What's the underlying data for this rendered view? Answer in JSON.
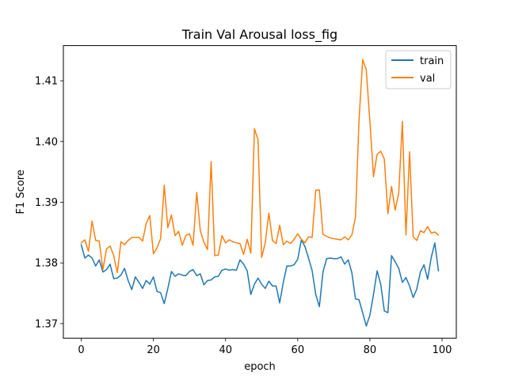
{
  "chart_data": {
    "type": "line",
    "title": "Train Val Arousal loss_fig",
    "xlabel": "epoch",
    "ylabel": "F1 Score",
    "xlim": [
      -4.95,
      103.95
    ],
    "ylim": [
      1.3676,
      1.4158
    ],
    "xticks": [
      0,
      20,
      40,
      60,
      80,
      100
    ],
    "yticks": [
      1.37,
      1.38,
      1.39,
      1.4,
      1.41
    ],
    "ytick_labels": [
      "1.37",
      "1.38",
      "1.39",
      "1.40",
      "1.41"
    ],
    "grid": false,
    "legend_position": "top-right",
    "series": [
      {
        "name": "train",
        "color": "#1f77b4",
        "x": [
          0,
          1,
          2,
          3,
          4,
          5,
          6,
          7,
          8,
          9,
          10,
          11,
          12,
          13,
          14,
          15,
          16,
          17,
          18,
          19,
          20,
          21,
          22,
          23,
          24,
          25,
          26,
          27,
          28,
          29,
          30,
          31,
          32,
          33,
          34,
          35,
          36,
          37,
          38,
          39,
          40,
          41,
          42,
          43,
          44,
          45,
          46,
          47,
          48,
          49,
          50,
          51,
          52,
          53,
          54,
          55,
          56,
          57,
          58,
          59,
          60,
          61,
          62,
          63,
          64,
          65,
          66,
          67,
          68,
          69,
          70,
          71,
          72,
          73,
          74,
          75,
          76,
          77,
          78,
          79,
          80,
          81,
          82,
          83,
          84,
          85,
          86,
          87,
          88,
          89,
          90,
          91,
          92,
          93,
          94,
          95,
          96,
          97,
          98,
          99
        ],
        "values": [
          1.383,
          1.3808,
          1.3813,
          1.3808,
          1.3795,
          1.3805,
          1.3785,
          1.3789,
          1.3798,
          1.3774,
          1.3775,
          1.378,
          1.3791,
          1.3771,
          1.3756,
          1.3777,
          1.3768,
          1.3758,
          1.3771,
          1.3765,
          1.3777,
          1.3753,
          1.3751,
          1.3733,
          1.3758,
          1.3786,
          1.3778,
          1.3782,
          1.378,
          1.3779,
          1.3786,
          1.3789,
          1.3779,
          1.3782,
          1.3764,
          1.3771,
          1.3772,
          1.3777,
          1.3778,
          1.3788,
          1.379,
          1.3788,
          1.3789,
          1.3788,
          1.3805,
          1.3798,
          1.3787,
          1.3748,
          1.3765,
          1.3775,
          1.3765,
          1.3758,
          1.377,
          1.3762,
          1.3762,
          1.3734,
          1.3768,
          1.3795,
          1.3795,
          1.3797,
          1.3806,
          1.3838,
          1.3827,
          1.3808,
          1.3787,
          1.3748,
          1.3728,
          1.3785,
          1.3807,
          1.3808,
          1.3807,
          1.3807,
          1.381,
          1.3798,
          1.3805,
          1.3784,
          1.3741,
          1.3739,
          1.3718,
          1.3696,
          1.3714,
          1.3748,
          1.3787,
          1.3765,
          1.3721,
          1.3718,
          1.3812,
          1.3802,
          1.3791,
          1.3768,
          1.3776,
          1.3762,
          1.3743,
          1.3757,
          1.3785,
          1.3797,
          1.3773,
          1.3809,
          1.3833,
          1.3787
        ]
      },
      {
        "name": "val",
        "color": "#ff7f0e",
        "x": [
          0,
          1,
          2,
          3,
          4,
          5,
          6,
          7,
          8,
          9,
          10,
          11,
          12,
          13,
          14,
          15,
          16,
          17,
          18,
          19,
          20,
          21,
          22,
          23,
          24,
          25,
          26,
          27,
          28,
          29,
          30,
          31,
          32,
          33,
          34,
          35,
          36,
          37,
          38,
          39,
          40,
          41,
          42,
          43,
          44,
          45,
          46,
          47,
          48,
          49,
          50,
          51,
          52,
          53,
          54,
          55,
          56,
          57,
          58,
          59,
          60,
          61,
          62,
          63,
          64,
          65,
          66,
          67,
          68,
          69,
          70,
          71,
          72,
          73,
          74,
          75,
          76,
          77,
          78,
          79,
          80,
          81,
          82,
          83,
          84,
          85,
          86,
          87,
          88,
          89,
          90,
          91,
          92,
          93,
          94,
          95,
          96,
          97,
          98,
          99
        ],
        "values": [
          1.3833,
          1.3838,
          1.3819,
          1.3869,
          1.3837,
          1.3836,
          1.3789,
          1.3823,
          1.3828,
          1.3812,
          1.3784,
          1.3835,
          1.383,
          1.3837,
          1.3842,
          1.3842,
          1.3842,
          1.3836,
          1.3865,
          1.3878,
          1.3815,
          1.3825,
          1.384,
          1.3928,
          1.3858,
          1.3879,
          1.3845,
          1.3852,
          1.3829,
          1.3845,
          1.3848,
          1.3829,
          1.3916,
          1.3853,
          1.3834,
          1.3822,
          1.3967,
          1.3812,
          1.3813,
          1.3845,
          1.3833,
          1.3838,
          1.3835,
          1.3833,
          1.3832,
          1.3814,
          1.3839,
          1.3816,
          1.4021,
          1.4003,
          1.3809,
          1.3833,
          1.3882,
          1.3837,
          1.3832,
          1.3862,
          1.383,
          1.3836,
          1.3832,
          1.3839,
          1.3848,
          1.3839,
          1.3833,
          1.3843,
          1.3842,
          1.392,
          1.392,
          1.3847,
          1.3844,
          1.3841,
          1.384,
          1.3839,
          1.3838,
          1.3843,
          1.3838,
          1.3846,
          1.3875,
          1.4036,
          1.4135,
          1.4118,
          1.4033,
          1.3942,
          1.3979,
          1.3984,
          1.3971,
          1.3881,
          1.3926,
          1.3887,
          1.3915,
          1.4033,
          1.3846,
          1.3983,
          1.3843,
          1.3837,
          1.3853,
          1.385,
          1.386,
          1.3849,
          1.3851,
          1.3846
        ]
      }
    ]
  }
}
